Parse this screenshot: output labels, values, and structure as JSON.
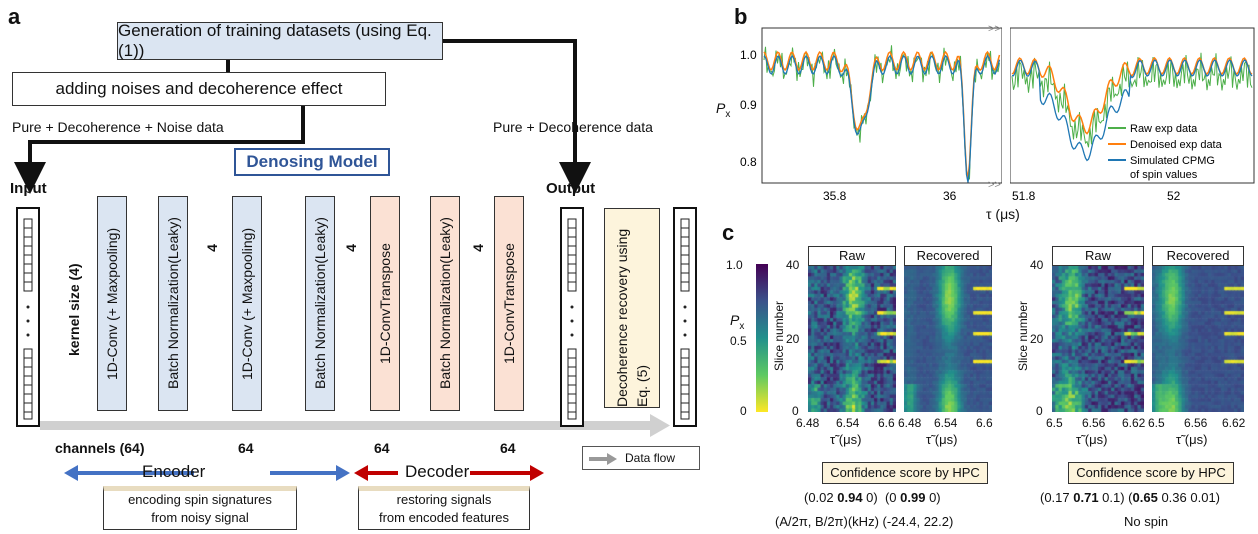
{
  "panel_a": {
    "letter": "a",
    "top_box": "Generation of training datasets (using Eq. (1))",
    "noise_box": "adding noises and decoherence effect",
    "left_arrow_label": "Pure + Decoherence + Noise data",
    "right_arrow_label": "Pure + Decoherence data",
    "model_title": "Denosing Model",
    "input_label": "Input",
    "output_label": "Output",
    "kernel_label": "kernel size (4)",
    "layers": [
      {
        "text": "1D-Conv (+ Maxpooling)"
      },
      {
        "text": "Batch Normalization(Leaky)"
      },
      {
        "text": "1D-Conv (+ Maxpooling)"
      },
      {
        "text": "Batch Normalization(Leaky)"
      },
      {
        "text": "1D-ConvTranspose"
      },
      {
        "text": "Batch Normalization(Leaky)"
      },
      {
        "text": "1D-ConvTranspose"
      }
    ],
    "kernel_nums": [
      "4",
      "4",
      "4"
    ],
    "channels": [
      "channels (64)",
      "64",
      "64",
      "64"
    ],
    "recovery_box": "Decoherence recovery using Eq. (5)",
    "data_flow": "Data flow",
    "encoder": "Encoder",
    "decoder": "Decoder",
    "encoder_desc_1": "encoding spin signatures",
    "encoder_desc_2": "from noisy signal",
    "decoder_desc_1": "restoring signals",
    "decoder_desc_2": "from encoded features"
  },
  "panel_b": {
    "letter": "b",
    "ylabel": "P",
    "ylabel_sub": "x",
    "xlabel": "τ (μs)",
    "yticks": [
      "1.0",
      "0.9",
      "0.8"
    ],
    "xticks_left": [
      "35.8",
      "36"
    ],
    "xticks_right": [
      "51.8",
      "52"
    ],
    "legend": [
      {
        "name": "Raw exp data",
        "color": "#4daf4a"
      },
      {
        "name": "Denoised exp data",
        "color": "#ff7f0e"
      },
      {
        "name": "Simulated CPMG",
        "color": "#1f77b4"
      },
      {
        "name": "of spin values",
        "color": ""
      }
    ]
  },
  "panel_c": {
    "letter": "c",
    "colorbar_label": "P",
    "colorbar_sub": "x",
    "colorbar_ticks": [
      "1.0",
      "0.5",
      "0"
    ],
    "ylabel": "Slice number",
    "yticks": [
      "40",
      "20",
      "0"
    ],
    "xlabel": "τ̃ (μs)",
    "left_group": {
      "titles": [
        "Raw",
        "Recovered"
      ],
      "xticks": [
        "6.48",
        "6.54",
        "6.6"
      ],
      "confidence_title": "Confidence score by HPC",
      "scores_1": "(0.02 ",
      "scores_1b": "0.94",
      "scores_1c": " 0)",
      "scores_2": "(0 ",
      "scores_2b": "0.99",
      "scores_2c": " 0)",
      "footer": "(A/2π, B/2π)(kHz) (-24.4, 22.2)"
    },
    "right_group": {
      "titles": [
        "Raw",
        "Recovered"
      ],
      "xticks": [
        "6.5",
        "6.56",
        "6.62"
      ],
      "confidence_title": "Confidence score by HPC",
      "scores_1": "(0.17 ",
      "scores_1b": "0.71",
      "scores_1c": " 0.1) (",
      "scores_2b": "0.65",
      "scores_2c": " 0.36 0.01)",
      "footer": "No spin"
    }
  },
  "colors": {
    "raw": "#4daf4a",
    "denoised": "#ff7f0e",
    "simulated": "#1f77b4",
    "encoder_arrow": "#4472c4",
    "decoder_arrow": "#c00000"
  }
}
